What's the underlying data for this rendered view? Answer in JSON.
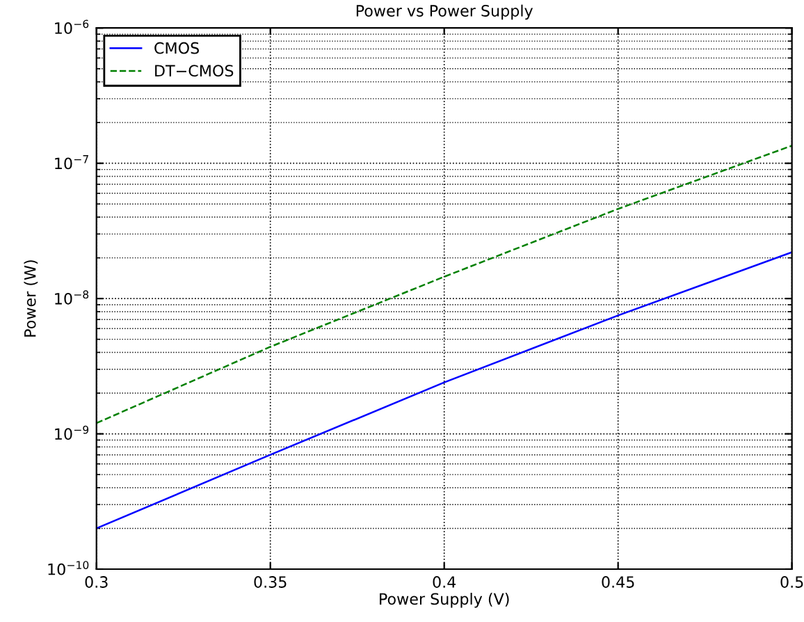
{
  "chart_data": {
    "type": "line",
    "title": "Power vs Power Supply",
    "xlabel": "Power Supply (V)",
    "ylabel": "Power (W)",
    "x": [
      0.3,
      0.35,
      0.4,
      0.45,
      0.5
    ],
    "series": [
      {
        "name": "CMOS",
        "color": "#0000ff",
        "line_style": "solid",
        "values": [
          2e-10,
          7e-10,
          2.4e-09,
          7.5e-09,
          2.2e-08
        ]
      },
      {
        "name": "DT−CMOS",
        "color": "#008000",
        "line_style": "dashed",
        "values": [
          1.2e-09,
          4.4e-09,
          1.45e-08,
          4.6e-08,
          1.35e-07
        ]
      }
    ],
    "log": "y",
    "xlim": [
      0.3,
      0.5
    ],
    "xticks": [
      0.3,
      0.35,
      0.4,
      0.45,
      0.5
    ],
    "ylim": [
      1e-10,
      1e-06
    ],
    "yticks": [
      {
        "value": 1e-10,
        "label": "10$^{−10}$"
      },
      {
        "value": 1e-09,
        "label": "10$^{−9}$"
      },
      {
        "value": 1e-08,
        "label": "10$^{−8}$"
      },
      {
        "value": 1e-07,
        "label": "10$^{−7}$"
      },
      {
        "value": 1e-06,
        "label": "10$^{−6}$"
      }
    ],
    "grid": true,
    "legend": "top left",
    "marker": "none"
  }
}
